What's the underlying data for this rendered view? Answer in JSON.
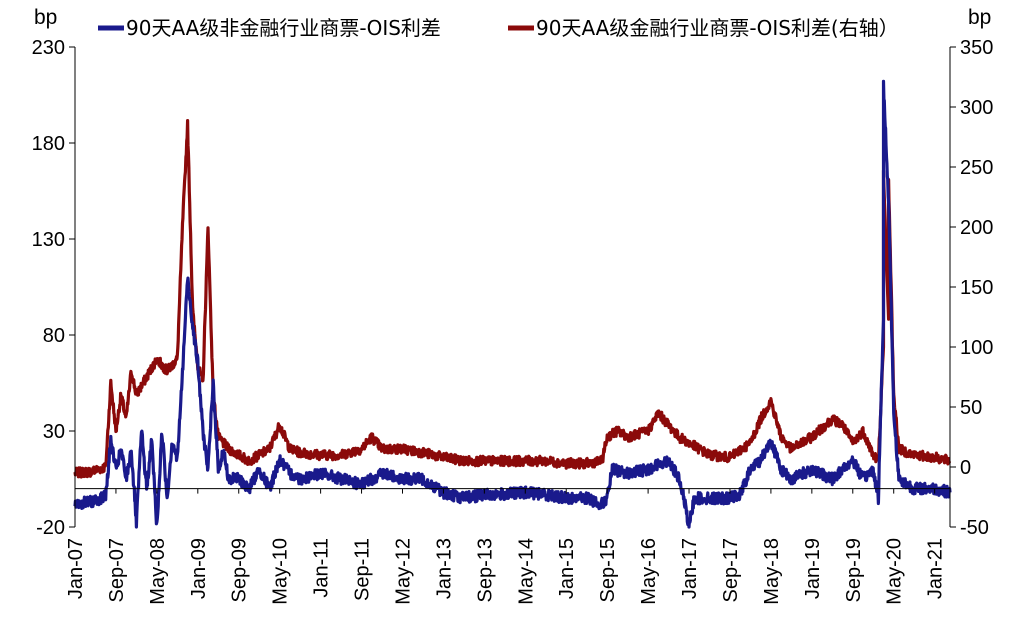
{
  "colors": {
    "series_left": "#1a1a8c",
    "series_right": "#8b0a0a",
    "negative_tick": "#e00000",
    "axis": "#000000"
  },
  "chart_data": {
    "type": "line",
    "title": "",
    "left_axis": {
      "unit": "bp",
      "ylim": [
        -20,
        230
      ],
      "ticks": [
        -20,
        30,
        80,
        130,
        180,
        230
      ],
      "negative_tick_color": "#e00000"
    },
    "right_axis": {
      "unit": "bp",
      "ylim": [
        -50,
        350
      ],
      "ticks": [
        -50,
        0,
        50,
        100,
        150,
        200,
        250,
        300,
        350
      ]
    },
    "x_axis": {
      "range": [
        "2007-01",
        "2021-04"
      ],
      "tick_labels": [
        "Jan-07",
        "Sep-07",
        "May-08",
        "Jan-09",
        "Sep-09",
        "May-10",
        "Jan-11",
        "Sep-11",
        "May-12",
        "Jan-13",
        "Sep-13",
        "May-14",
        "Jan-15",
        "Sep-15",
        "May-16",
        "Jan-17",
        "Sep-17",
        "May-18",
        "Jan-19",
        "Sep-19",
        "May-20",
        "Jan-21"
      ]
    },
    "legend_placement": "top",
    "series": [
      {
        "name": "90天AA级非金融行业商票-OIS利差",
        "axis": "left",
        "color": "#1a1a8c",
        "points": [
          [
            "2007-01",
            -8
          ],
          [
            "2007-04",
            -7
          ],
          [
            "2007-07",
            -4
          ],
          [
            "2007-08",
            25
          ],
          [
            "2007-09",
            10
          ],
          [
            "2007-10",
            20
          ],
          [
            "2007-11",
            5
          ],
          [
            "2007-12",
            20
          ],
          [
            "2008-01",
            -18
          ],
          [
            "2008-02",
            30
          ],
          [
            "2008-03",
            0
          ],
          [
            "2008-04",
            25
          ],
          [
            "2008-05",
            -20
          ],
          [
            "2008-06",
            30
          ],
          [
            "2008-07",
            -5
          ],
          [
            "2008-08",
            25
          ],
          [
            "2008-09",
            15
          ],
          [
            "2008-10",
            60
          ],
          [
            "2008-11",
            110
          ],
          [
            "2008-12",
            85
          ],
          [
            "2009-01",
            65
          ],
          [
            "2009-02",
            30
          ],
          [
            "2009-03",
            10
          ],
          [
            "2009-04",
            55
          ],
          [
            "2009-05",
            10
          ],
          [
            "2009-06",
            20
          ],
          [
            "2009-07",
            5
          ],
          [
            "2009-09",
            5
          ],
          [
            "2009-11",
            0
          ],
          [
            "2010-01",
            10
          ],
          [
            "2010-03",
            0
          ],
          [
            "2010-05",
            15
          ],
          [
            "2010-07",
            8
          ],
          [
            "2010-09",
            5
          ],
          [
            "2011-01",
            8
          ],
          [
            "2011-05",
            5
          ],
          [
            "2011-09",
            2
          ],
          [
            "2012-01",
            8
          ],
          [
            "2012-05",
            5
          ],
          [
            "2012-09",
            5
          ],
          [
            "2013-01",
            -2
          ],
          [
            "2013-05",
            -5
          ],
          [
            "2013-09",
            -3
          ],
          [
            "2014-01",
            -3
          ],
          [
            "2014-05",
            -2
          ],
          [
            "2014-09",
            -3
          ],
          [
            "2015-01",
            -5
          ],
          [
            "2015-05",
            -5
          ],
          [
            "2015-08",
            -8
          ],
          [
            "2015-09",
            -5
          ],
          [
            "2015-10",
            10
          ],
          [
            "2016-01",
            8
          ],
          [
            "2016-05",
            10
          ],
          [
            "2016-09",
            15
          ],
          [
            "2016-11",
            5
          ],
          [
            "2016-12",
            -5
          ],
          [
            "2017-01",
            -20
          ],
          [
            "2017-02",
            -5
          ],
          [
            "2017-05",
            -5
          ],
          [
            "2017-09",
            -5
          ],
          [
            "2017-11",
            -3
          ],
          [
            "2018-01",
            10
          ],
          [
            "2018-03",
            15
          ],
          [
            "2018-05",
            25
          ],
          [
            "2018-07",
            10
          ],
          [
            "2018-09",
            5
          ],
          [
            "2019-01",
            10
          ],
          [
            "2019-05",
            5
          ],
          [
            "2019-09",
            15
          ],
          [
            "2019-11",
            5
          ],
          [
            "2020-01",
            10
          ],
          [
            "2020-02",
            -5
          ],
          [
            "2020-03",
            90
          ],
          [
            "2020-03",
            210
          ],
          [
            "2020-04",
            150
          ],
          [
            "2020-05",
            40
          ],
          [
            "2020-06",
            5
          ],
          [
            "2020-09",
            0
          ],
          [
            "2021-01",
            0
          ],
          [
            "2021-04",
            -2
          ]
        ]
      },
      {
        "name": "90天AA级金融行业商票-OIS利差(右轴）",
        "axis": "right",
        "color": "#8b0a0a",
        "points": [
          [
            "2007-01",
            -5
          ],
          [
            "2007-04",
            -4
          ],
          [
            "2007-07",
            0
          ],
          [
            "2007-08",
            70
          ],
          [
            "2007-09",
            30
          ],
          [
            "2007-10",
            60
          ],
          [
            "2007-11",
            40
          ],
          [
            "2007-12",
            80
          ],
          [
            "2008-01",
            60
          ],
          [
            "2008-03",
            75
          ],
          [
            "2008-05",
            90
          ],
          [
            "2008-07",
            80
          ],
          [
            "2008-09",
            90
          ],
          [
            "2008-10",
            200
          ],
          [
            "2008-11",
            285
          ],
          [
            "2008-12",
            130
          ],
          [
            "2009-01",
            85
          ],
          [
            "2009-02",
            70
          ],
          [
            "2009-03",
            200
          ],
          [
            "2009-04",
            60
          ],
          [
            "2009-05",
            25
          ],
          [
            "2009-07",
            15
          ],
          [
            "2009-09",
            10
          ],
          [
            "2009-11",
            5
          ],
          [
            "2010-01",
            10
          ],
          [
            "2010-03",
            15
          ],
          [
            "2010-05",
            35
          ],
          [
            "2010-07",
            15
          ],
          [
            "2010-09",
            12
          ],
          [
            "2011-01",
            10
          ],
          [
            "2011-05",
            10
          ],
          [
            "2011-09",
            15
          ],
          [
            "2011-11",
            25
          ],
          [
            "2012-01",
            15
          ],
          [
            "2012-05",
            15
          ],
          [
            "2012-09",
            12
          ],
          [
            "2013-01",
            8
          ],
          [
            "2013-05",
            5
          ],
          [
            "2013-09",
            5
          ],
          [
            "2014-01",
            5
          ],
          [
            "2014-05",
            5
          ],
          [
            "2014-09",
            5
          ],
          [
            "2015-01",
            3
          ],
          [
            "2015-05",
            3
          ],
          [
            "2015-08",
            5
          ],
          [
            "2015-09",
            25
          ],
          [
            "2015-11",
            30
          ],
          [
            "2016-01",
            25
          ],
          [
            "2016-05",
            30
          ],
          [
            "2016-07",
            45
          ],
          [
            "2016-09",
            35
          ],
          [
            "2016-11",
            25
          ],
          [
            "2017-01",
            20
          ],
          [
            "2017-05",
            10
          ],
          [
            "2017-09",
            8
          ],
          [
            "2018-01",
            20
          ],
          [
            "2018-03",
            40
          ],
          [
            "2018-05",
            55
          ],
          [
            "2018-07",
            25
          ],
          [
            "2018-09",
            15
          ],
          [
            "2019-01",
            25
          ],
          [
            "2019-05",
            40
          ],
          [
            "2019-07",
            35
          ],
          [
            "2019-09",
            20
          ],
          [
            "2019-11",
            30
          ],
          [
            "2020-01",
            10
          ],
          [
            "2020-02",
            5
          ],
          [
            "2020-03",
            100
          ],
          [
            "2020-03",
            245
          ],
          [
            "2020-04",
            120
          ],
          [
            "2020-04",
            240
          ],
          [
            "2020-05",
            60
          ],
          [
            "2020-06",
            15
          ],
          [
            "2020-09",
            10
          ],
          [
            "2021-01",
            8
          ],
          [
            "2021-04",
            5
          ]
        ]
      }
    ]
  }
}
